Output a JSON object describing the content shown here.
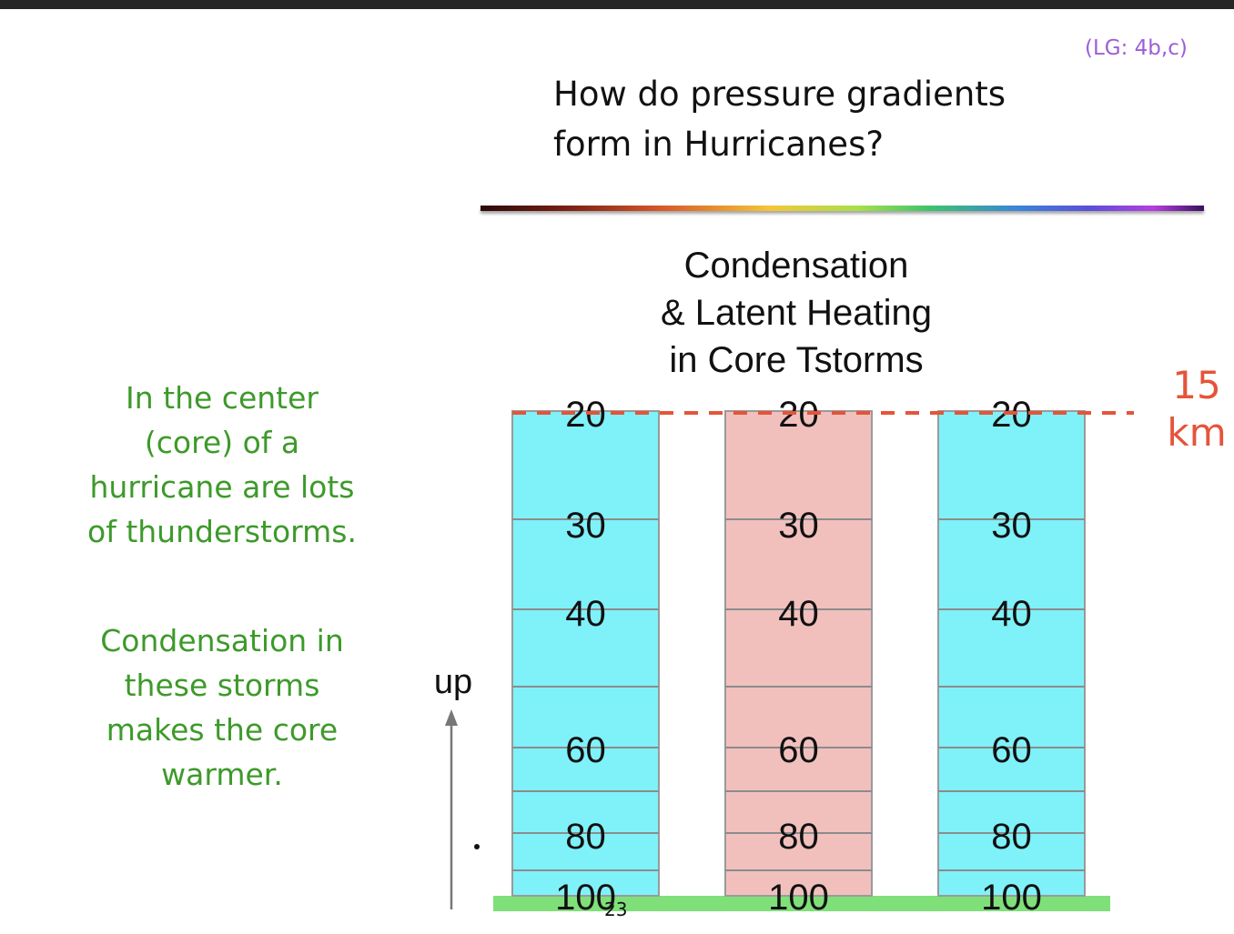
{
  "slide": {
    "lg_tag": "(LG: 4b,c)",
    "title_lines": [
      "How do pressure gradients",
      "form in Hurricanes?"
    ],
    "page_number": "23"
  },
  "left_text": {
    "paragraph1_lines": [
      "In the center",
      "(core) of a",
      "hurricane are lots",
      "of thunderstorms."
    ],
    "paragraph2_lines": [
      "Condensation in",
      "these storms",
      "makes the core",
      "warmer."
    ]
  },
  "diagram": {
    "title_lines": [
      "Condensation",
      "& Latent Heating",
      "in Core Tstorms"
    ],
    "height_label_lines": [
      "15",
      "km"
    ],
    "up_label": "up",
    "columns": [
      {
        "name": "left-column",
        "fill": "#7ff1f9",
        "levels": [
          "20",
          "30",
          "40",
          "60",
          "80",
          "100"
        ]
      },
      {
        "name": "center-column",
        "fill": "#f1c0bd",
        "levels": [
          "20",
          "30",
          "40",
          "60",
          "80",
          "100"
        ]
      },
      {
        "name": "right-column",
        "fill": "#7ff1f9",
        "levels": [
          "20",
          "30",
          "40",
          "60",
          "80",
          "100"
        ]
      }
    ],
    "colors": {
      "cold_column": "#7ff1f9",
      "warm_column": "#f1c0bd",
      "ground": "#7fe07a",
      "dashed_line": "#e5543a",
      "side_text": "#3d9a2a",
      "lg_tag": "#9b5fd6"
    }
  }
}
